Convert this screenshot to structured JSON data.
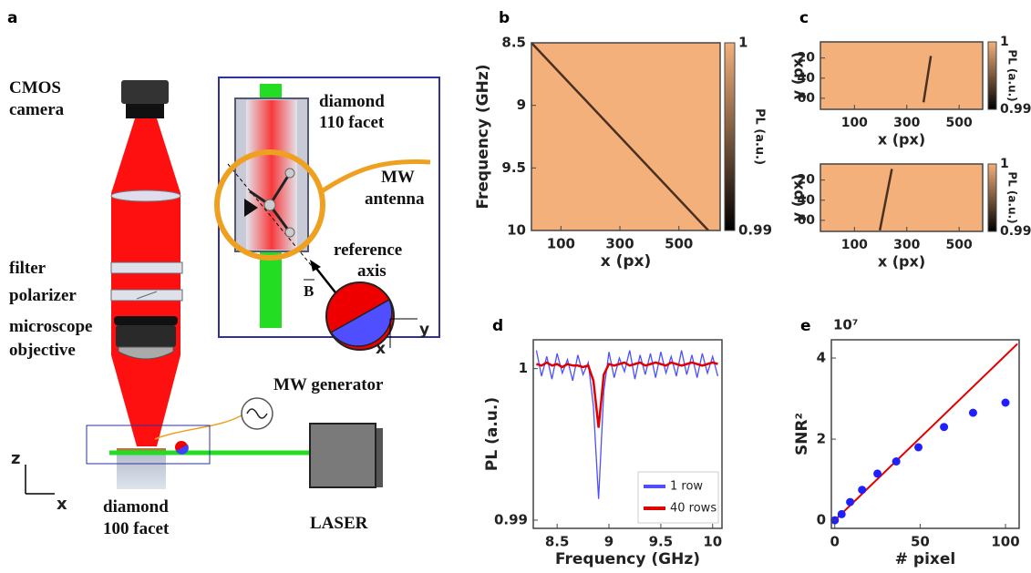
{
  "diagram": {
    "panel": "a",
    "camera": [
      "CMOS",
      "camera"
    ],
    "filter": "filter",
    "polarizer": "polarizer",
    "objective": [
      "microscope",
      "objective"
    ],
    "generator": "MW generator",
    "sample": [
      "diamond",
      "100 facet"
    ],
    "laser": "LASER",
    "axes": [
      "z",
      "x"
    ],
    "inset": {
      "facet": [
        "diamond",
        "110 facet"
      ],
      "antenna": [
        "MW",
        "antenna"
      ],
      "reference": [
        "reference",
        "axis"
      ],
      "field": "B",
      "axes": [
        "y",
        "x"
      ]
    }
  },
  "chart_data": [
    {
      "type": "heatmap",
      "panel": "b",
      "xlabel": "x (px)",
      "ylabel": "Frequency (GHz)",
      "xlim": [
        0,
        640
      ],
      "ylim": [
        8.5,
        10
      ],
      "y_inverted": true,
      "xticks": [
        100,
        300,
        500
      ],
      "yticks": [
        8.5,
        9,
        9.5,
        10
      ],
      "background": "#f3b07b",
      "colorbar": {
        "label": "PL (a.u.)",
        "lim": [
          0.99,
          1
        ],
        "ticks": [
          0.99,
          1
        ]
      },
      "trace": {
        "x": [
          0,
          600
        ],
        "values": [
          8.5,
          10
        ],
        "color": "#2a1a12"
      }
    },
    {
      "type": "heatmap",
      "panel": "c",
      "xlabel": "x (px)",
      "ylabel": "y (px)",
      "xlim": [
        -30,
        590
      ],
      "ylim": [
        4,
        71
      ],
      "y_inverted": true,
      "xticks": [
        100,
        300,
        500
      ],
      "yticks": [
        20,
        40,
        60
      ],
      "background": "#f3b07b",
      "colorbar": {
        "label": "PL (a.u.)",
        "lim": [
          0.99,
          1
        ],
        "ticks": [
          0.99,
          1
        ]
      },
      "trace": {
        "x": [
          364,
          392
        ],
        "values": [
          64,
          18
        ],
        "color": "#2a1a12"
      }
    },
    {
      "type": "heatmap",
      "xlabel": "x (px)",
      "ylabel": "y (px)",
      "xlim": [
        -30,
        590
      ],
      "ylim": [
        4,
        71
      ],
      "y_inverted": true,
      "xticks": [
        100,
        300,
        500
      ],
      "yticks": [
        20,
        40,
        60
      ],
      "background": "#f3b07b",
      "colorbar": {
        "label": "PL (a.u.)",
        "lim": [
          0.99,
          1
        ],
        "ticks": [
          0.99,
          1
        ]
      },
      "trace": {
        "x": [
          197,
          243
        ],
        "values": [
          70,
          9
        ],
        "color": "#2a1a12"
      }
    },
    {
      "type": "line",
      "panel": "d",
      "xlabel": "Frequency (GHz)",
      "ylabel": "PL (a.u.)",
      "xlim": [
        8.27,
        10.09
      ],
      "ylim": [
        0.98946,
        1.0019
      ],
      "xticks": [
        8.5,
        9,
        9.5,
        10
      ],
      "xtick_labels": [
        "8.5",
        "9",
        "9.5",
        "10"
      ],
      "yticks": [
        0.99,
        1
      ],
      "legend": "lower right",
      "x": [
        8.3,
        8.35,
        8.4,
        8.45,
        8.5,
        8.55,
        8.6,
        8.65,
        8.7,
        8.75,
        8.8,
        8.85,
        8.9,
        8.95,
        9,
        9.05,
        9.1,
        9.15,
        9.2,
        9.25,
        9.3,
        9.35,
        9.4,
        9.45,
        9.5,
        9.55,
        9.6,
        9.65,
        9.7,
        9.75,
        9.8,
        9.85,
        9.9,
        9.95,
        10,
        10.05
      ],
      "series": [
        {
          "name": "1 row",
          "color": "#4f4fff",
          "values": [
            1.0012,
            0.9995,
            1.0008,
            0.9993,
            1.001,
            0.9997,
            1.0006,
            0.9992,
            1.0009,
            0.9996,
            1.0004,
            0.9975,
            0.9914,
            0.9985,
            1.0011,
            0.9994,
            1.0007,
            0.9998,
            1.0012,
            0.9993,
            1.0009,
            0.9996,
            1.001,
            0.9994,
            1.0011,
            0.9997,
            1.0008,
            0.9995,
            1.0012,
            0.9996,
            1.0009,
            0.9994,
            1.001,
            0.9997,
            1.0008,
            0.9995
          ]
        },
        {
          "name": "40 rows",
          "color": "#e00000",
          "values": [
            1.0003,
            1.0002,
            1.0004,
            1.0002,
            1.0003,
            1.0001,
            1.0003,
            1.0002,
            1.0002,
            1.0001,
            1.0002,
            0.9992,
            0.9961,
            0.9996,
            1.0003,
            1.0002,
            1.0003,
            1.0004,
            1.0002,
            1.0003,
            1.0004,
            1.0002,
            1.0003,
            1.0004,
            1.0003,
            1.0002,
            1.0004,
            1.0003,
            1.0002,
            1.0003,
            1.0004,
            1.0003,
            1.0002,
            1.0003,
            1.0004,
            1.0003
          ]
        }
      ]
    },
    {
      "type": "scatter",
      "panel": "e",
      "xlabel": "# pixel",
      "ylabel": "SNR²",
      "multiplier": "10⁷",
      "xlim": [
        -2,
        108
      ],
      "ylim": [
        -0.2,
        4.45
      ],
      "xticks": [
        0,
        50,
        100
      ],
      "yticks": [
        0,
        2,
        4
      ],
      "color": "#2020ff",
      "x": [
        0,
        4,
        9,
        16,
        25,
        36,
        49,
        64,
        81,
        100
      ],
      "values": [
        0,
        0.15,
        0.45,
        0.75,
        1.15,
        1.45,
        1.8,
        2.3,
        2.65,
        2.9
      ],
      "fit": {
        "x": [
          0,
          107
        ],
        "values": [
          0,
          4.35
        ],
        "color": "#e00000"
      }
    }
  ]
}
